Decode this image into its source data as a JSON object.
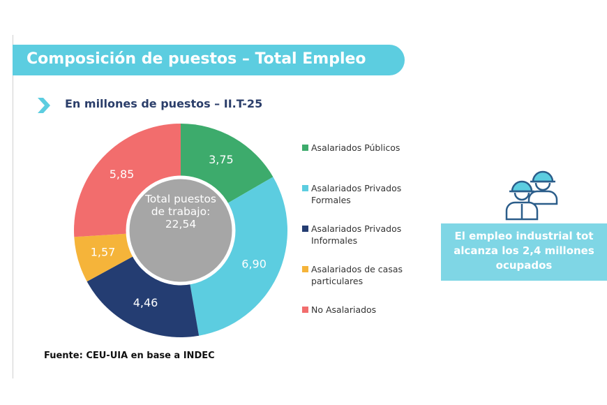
{
  "chart_data": {
    "type": "pie",
    "title": "Composición de puestos – Total Empleo",
    "subtitle": "En millones de puestos – II.T-25",
    "categories": [
      "Asalariados Públicos",
      "Asalariados Privados Formales",
      "Asalariados Privados Informales",
      "Asalariados de casas particulares",
      "No Asalariados"
    ],
    "values": [
      3.75,
      6.9,
      4.46,
      1.57,
      5.85
    ],
    "value_labels": [
      "3,75",
      "6,90",
      "4,46",
      "1,57",
      "5,85"
    ],
    "colors": [
      "#3dab6c",
      "#5ccde0",
      "#243d72",
      "#f5b43a",
      "#f26d6d"
    ],
    "center_label": "Total puestos de trabajo: 22,54",
    "source": "Fuente: CEU-UIA en base a INDEC"
  },
  "callout": {
    "lines": [
      "El empleo industrial tot",
      "alcanza los 2,4 millones",
      "ocupados"
    ]
  }
}
